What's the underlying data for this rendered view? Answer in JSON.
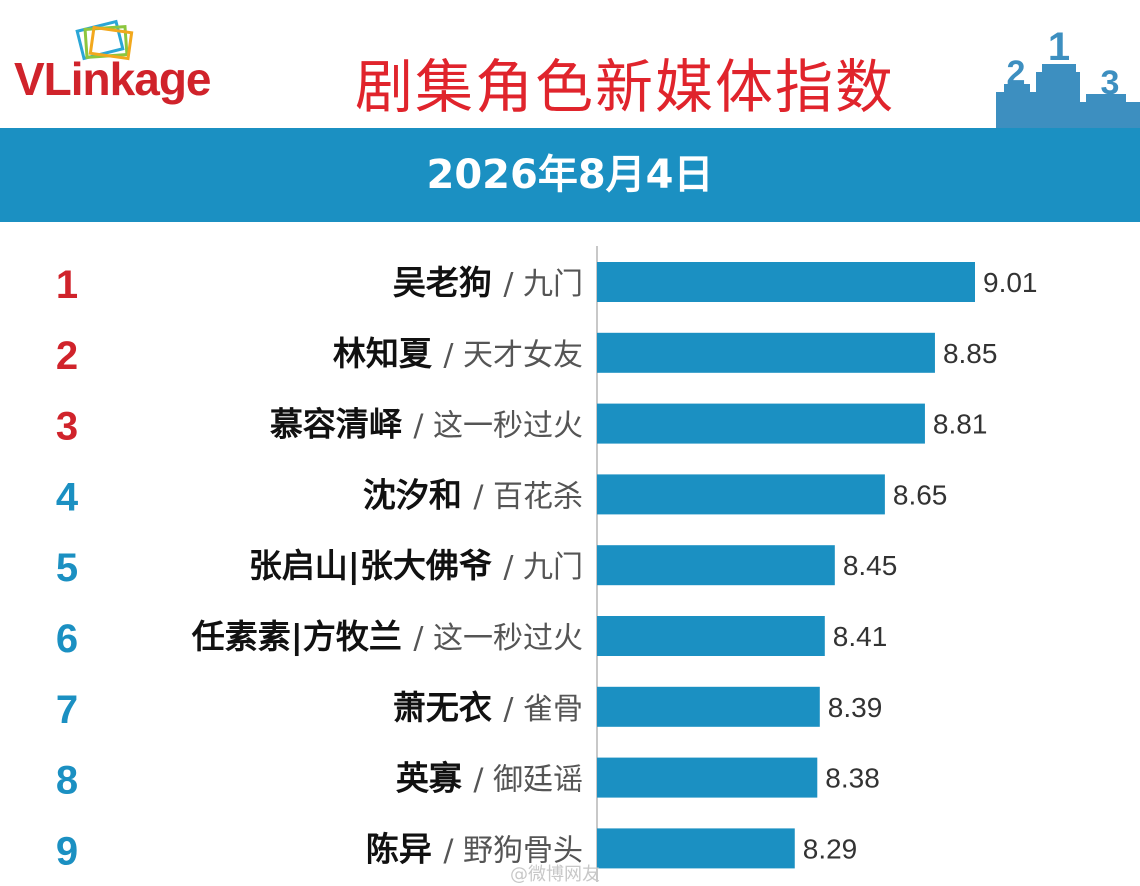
{
  "header": {
    "logo_text": "VLinkage",
    "title": "剧集角色新媒体指数",
    "date": "2026年8月4日",
    "podium_numbers": [
      "2",
      "1",
      "3"
    ]
  },
  "colors": {
    "title_red": "#e0242c",
    "band_blue": "#1b90c2",
    "bar_blue": "#1b90c2",
    "rank_red": "#d0232b",
    "rank_blue": "#1b90c2"
  },
  "chart_data": {
    "type": "bar",
    "orientation": "horizontal",
    "title": "剧集角色新媒体指数",
    "categories": [
      "吴老狗 / 九门",
      "林知夏 / 天才女友",
      "慕容清峄 / 这一秒过火",
      "沈汐和 / 百花杀",
      "张启山|张大佛爷 / 九门",
      "任素素|方牧兰 / 这一秒过火",
      "萧无衣 / 雀骨",
      "英寡 / 御廷谣",
      "陈异 / 野狗骨头"
    ],
    "rows": [
      {
        "rank": "1",
        "character": "吴老狗",
        "drama": "/ 九门",
        "value": 9.01,
        "label": "9.01"
      },
      {
        "rank": "2",
        "character": "林知夏",
        "drama": "/ 天才女友",
        "value": 8.85,
        "label": "8.85"
      },
      {
        "rank": "3",
        "character": "慕容清峄",
        "drama": "/ 这一秒过火",
        "value": 8.81,
        "label": "8.81"
      },
      {
        "rank": "4",
        "character": "沈汐和",
        "drama": "/ 百花杀",
        "value": 8.65,
        "label": "8.65"
      },
      {
        "rank": "5",
        "character": "张启山|张大佛爷",
        "drama": "/ 九门",
        "value": 8.45,
        "label": "8.45"
      },
      {
        "rank": "6",
        "character": "任素素|方牧兰",
        "drama": "/ 这一秒过火",
        "value": 8.41,
        "label": "8.41"
      },
      {
        "rank": "7",
        "character": "萧无衣",
        "drama": "/ 雀骨",
        "value": 8.39,
        "label": "8.39"
      },
      {
        "rank": "8",
        "character": "英寡",
        "drama": "/ 御廷谣",
        "value": 8.38,
        "label": "8.38"
      },
      {
        "rank": "9",
        "character": "陈异",
        "drama": "/ 野狗骨头",
        "value": 8.29,
        "label": "8.29"
      }
    ],
    "values": [
      9.01,
      8.85,
      8.81,
      8.65,
      8.45,
      8.41,
      8.39,
      8.38,
      8.29
    ],
    "xlim": [
      7.5,
      9.2
    ],
    "grid": false,
    "legend": "none"
  },
  "watermark": "@微博网友"
}
